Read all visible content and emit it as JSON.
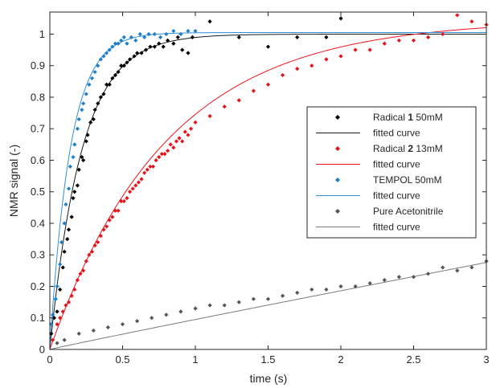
{
  "chart_data": {
    "type": "scatter",
    "xlabel": "time (s)",
    "ylabel": "NMR signal (-)",
    "xlim": [
      0,
      3
    ],
    "ylim": [
      0,
      1.07
    ],
    "xticks": [
      0,
      0.5,
      1,
      1.5,
      2,
      2.5,
      3
    ],
    "xtick_labels": [
      "0",
      "0.5",
      "1",
      "1.5",
      "2",
      "2.5",
      "3"
    ],
    "yticks": [
      0,
      0.1,
      0.2,
      0.3,
      0.4,
      0.5,
      0.6,
      0.7,
      0.8,
      0.9,
      1
    ],
    "ytick_labels": [
      "0",
      "0.1",
      "0.2",
      "0.3",
      "0.4",
      "0.5",
      "0.6",
      "0.7",
      "0.8",
      "0.9",
      "1"
    ],
    "grid": false,
    "legend_position": "right",
    "series": [
      {
        "name": "Radical 1 50mM",
        "name_parts": [
          "Radical ",
          "1",
          " 50mM"
        ],
        "fit_label": "fitted curve",
        "color": "#000000",
        "fit_color": "#1a1a1a",
        "points": [
          [
            0.01,
            0.05
          ],
          [
            0.03,
            0.1
          ],
          [
            0.05,
            0.12
          ],
          [
            0.07,
            0.19
          ],
          [
            0.09,
            0.26
          ],
          [
            0.1,
            0.31
          ],
          [
            0.12,
            0.35
          ],
          [
            0.13,
            0.38
          ],
          [
            0.15,
            0.42
          ],
          [
            0.16,
            0.48
          ],
          [
            0.17,
            0.5
          ],
          [
            0.19,
            0.52
          ],
          [
            0.2,
            0.57
          ],
          [
            0.22,
            0.61
          ],
          [
            0.23,
            0.6
          ],
          [
            0.25,
            0.66
          ],
          [
            0.26,
            0.68
          ],
          [
            0.28,
            0.72
          ],
          [
            0.3,
            0.73
          ],
          [
            0.31,
            0.76
          ],
          [
            0.33,
            0.78
          ],
          [
            0.35,
            0.8
          ],
          [
            0.37,
            0.81
          ],
          [
            0.39,
            0.84
          ],
          [
            0.41,
            0.84
          ],
          [
            0.43,
            0.86
          ],
          [
            0.45,
            0.87
          ],
          [
            0.47,
            0.88
          ],
          [
            0.49,
            0.9
          ],
          [
            0.51,
            0.9
          ],
          [
            0.53,
            0.91
          ],
          [
            0.55,
            0.92
          ],
          [
            0.58,
            0.93
          ],
          [
            0.6,
            0.94
          ],
          [
            0.63,
            0.94
          ],
          [
            0.66,
            0.95
          ],
          [
            0.69,
            0.96
          ],
          [
            0.72,
            0.96
          ],
          [
            0.75,
            0.97
          ],
          [
            0.78,
            0.96
          ],
          [
            0.81,
            0.98
          ],
          [
            0.85,
            0.97
          ],
          [
            0.88,
            0.99
          ],
          [
            0.91,
            0.95
          ],
          [
            0.95,
            0.94
          ],
          [
            0.98,
            0.99
          ],
          [
            1.1,
            1.04
          ],
          [
            1.3,
            0.99
          ],
          [
            1.5,
            0.96
          ],
          [
            1.7,
            0.99
          ],
          [
            1.9,
            0.99
          ],
          [
            2.0,
            1.05
          ]
        ],
        "fit": {
          "amplitude": 1.0,
          "tau": 0.22
        }
      },
      {
        "name": "Radical 2 13mM",
        "name_parts": [
          "Radical ",
          "2",
          " 13mM"
        ],
        "fit_label": "fitted curve",
        "color": "#e8141b",
        "fit_color": "#e8141b",
        "points": [
          [
            0.02,
            0.03
          ],
          [
            0.05,
            0.08
          ],
          [
            0.07,
            0.1
          ],
          [
            0.09,
            0.12
          ],
          [
            0.11,
            0.14
          ],
          [
            0.13,
            0.15
          ],
          [
            0.15,
            0.17
          ],
          [
            0.17,
            0.19
          ],
          [
            0.19,
            0.22
          ],
          [
            0.21,
            0.24
          ],
          [
            0.23,
            0.25
          ],
          [
            0.25,
            0.28
          ],
          [
            0.27,
            0.3
          ],
          [
            0.29,
            0.31
          ],
          [
            0.31,
            0.33
          ],
          [
            0.33,
            0.34
          ],
          [
            0.35,
            0.36
          ],
          [
            0.37,
            0.38
          ],
          [
            0.39,
            0.39
          ],
          [
            0.41,
            0.41
          ],
          [
            0.43,
            0.42
          ],
          [
            0.45,
            0.44
          ],
          [
            0.47,
            0.44
          ],
          [
            0.49,
            0.47
          ],
          [
            0.51,
            0.47
          ],
          [
            0.53,
            0.48
          ],
          [
            0.55,
            0.5
          ],
          [
            0.57,
            0.51
          ],
          [
            0.59,
            0.52
          ],
          [
            0.61,
            0.53
          ],
          [
            0.63,
            0.54
          ],
          [
            0.65,
            0.56
          ],
          [
            0.67,
            0.57
          ],
          [
            0.69,
            0.58
          ],
          [
            0.71,
            0.58
          ],
          [
            0.73,
            0.6
          ],
          [
            0.75,
            0.61
          ],
          [
            0.77,
            0.62
          ],
          [
            0.79,
            0.62
          ],
          [
            0.81,
            0.63
          ],
          [
            0.83,
            0.65
          ],
          [
            0.85,
            0.64
          ],
          [
            0.87,
            0.66
          ],
          [
            0.89,
            0.67
          ],
          [
            0.91,
            0.66
          ],
          [
            0.93,
            0.69
          ],
          [
            0.95,
            0.68
          ],
          [
            0.97,
            0.7
          ],
          [
            1.0,
            0.72
          ],
          [
            1.1,
            0.74
          ],
          [
            1.2,
            0.77
          ],
          [
            1.3,
            0.79
          ],
          [
            1.4,
            0.82
          ],
          [
            1.5,
            0.84
          ],
          [
            1.6,
            0.87
          ],
          [
            1.7,
            0.89
          ],
          [
            1.8,
            0.9
          ],
          [
            1.9,
            0.92
          ],
          [
            2.0,
            0.93
          ],
          [
            2.1,
            0.95
          ],
          [
            2.2,
            0.95
          ],
          [
            2.3,
            0.97
          ],
          [
            2.4,
            0.98
          ],
          [
            2.5,
            0.98
          ],
          [
            2.6,
            0.99
          ],
          [
            2.7,
            1.0
          ],
          [
            2.8,
            1.06
          ],
          [
            2.9,
            1.04
          ],
          [
            3.0,
            1.03
          ]
        ],
        "fit": {
          "amplitude": 1.045,
          "tau": 0.8
        }
      },
      {
        "name": "TEMPOL 50mM",
        "name_parts": [
          "TEMPOL 50mM"
        ],
        "fit_label": "fitted curve",
        "color": "#1f7ec8",
        "fit_color": "#2f8fd6",
        "points": [
          [
            0.01,
            0.08
          ],
          [
            0.02,
            0.11
          ],
          [
            0.04,
            0.16
          ],
          [
            0.05,
            0.2
          ],
          [
            0.07,
            0.27
          ],
          [
            0.08,
            0.34
          ],
          [
            0.1,
            0.4
          ],
          [
            0.11,
            0.46
          ],
          [
            0.13,
            0.51
          ],
          [
            0.14,
            0.58
          ],
          [
            0.16,
            0.61
          ],
          [
            0.17,
            0.65
          ],
          [
            0.19,
            0.7
          ],
          [
            0.2,
            0.73
          ],
          [
            0.22,
            0.76
          ],
          [
            0.23,
            0.78
          ],
          [
            0.25,
            0.81
          ],
          [
            0.27,
            0.84
          ],
          [
            0.29,
            0.86
          ],
          [
            0.31,
            0.88
          ],
          [
            0.33,
            0.9
          ],
          [
            0.35,
            0.92
          ],
          [
            0.37,
            0.93
          ],
          [
            0.39,
            0.94
          ],
          [
            0.41,
            0.95
          ],
          [
            0.43,
            0.96
          ],
          [
            0.45,
            0.97
          ],
          [
            0.47,
            0.97
          ],
          [
            0.49,
            0.98
          ],
          [
            0.51,
            0.99
          ],
          [
            0.53,
            0.97
          ],
          [
            0.56,
            0.99
          ],
          [
            0.59,
            0.98
          ],
          [
            0.62,
            1.0
          ],
          [
            0.65,
            0.99
          ],
          [
            0.68,
            1.0
          ],
          [
            0.72,
            1.0
          ],
          [
            0.76,
            0.99
          ],
          [
            0.8,
            1.0
          ],
          [
            0.85,
            1.01
          ],
          [
            0.9,
            1.0
          ],
          [
            0.95,
            1.01
          ],
          [
            1.0,
            1.01
          ]
        ],
        "fit": {
          "amplitude": 1.005,
          "tau": 0.14
        }
      },
      {
        "name": "Pure Acetonitrile",
        "name_parts": [
          "Pure Acetonitrile"
        ],
        "fit_label": "fitted curve",
        "color": "#555555",
        "fit_color": "#7a7a7a",
        "points": [
          [
            0.05,
            0.02
          ],
          [
            0.1,
            0.03
          ],
          [
            0.2,
            0.05
          ],
          [
            0.3,
            0.06
          ],
          [
            0.4,
            0.07
          ],
          [
            0.5,
            0.08
          ],
          [
            0.6,
            0.09
          ],
          [
            0.7,
            0.1
          ],
          [
            0.8,
            0.11
          ],
          [
            0.9,
            0.12
          ],
          [
            1.0,
            0.13
          ],
          [
            1.1,
            0.14
          ],
          [
            1.2,
            0.14
          ],
          [
            1.3,
            0.15
          ],
          [
            1.4,
            0.16
          ],
          [
            1.5,
            0.16
          ],
          [
            1.6,
            0.17
          ],
          [
            1.7,
            0.18
          ],
          [
            1.8,
            0.19
          ],
          [
            1.9,
            0.19
          ],
          [
            2.0,
            0.2
          ],
          [
            2.1,
            0.2
          ],
          [
            2.2,
            0.21
          ],
          [
            2.3,
            0.22
          ],
          [
            2.4,
            0.23
          ],
          [
            2.5,
            0.23
          ],
          [
            2.6,
            0.24
          ],
          [
            2.7,
            0.26
          ],
          [
            2.8,
            0.25
          ],
          [
            2.9,
            0.26
          ],
          [
            3.0,
            0.28
          ]
        ],
        "fit": {
          "power_coefficient": 0.095,
          "power_exponent": 0.97
        }
      }
    ]
  }
}
